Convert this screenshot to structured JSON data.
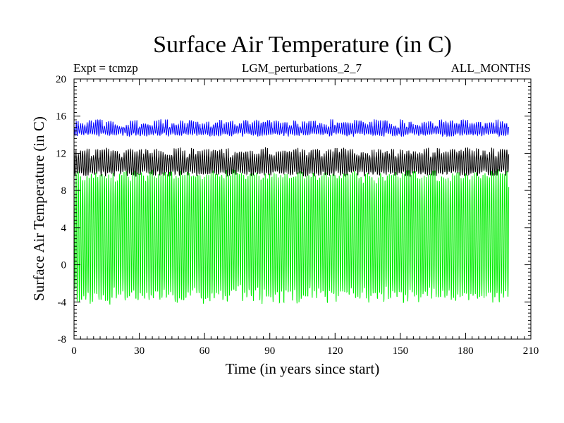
{
  "chart_data": {
    "type": "line",
    "title": "Surface Air Temperature (in C)",
    "subtitle_left": "Expt = tcmzp",
    "subtitle_center": "LGM_perturbations_2_7",
    "subtitle_right": "ALL_MONTHS",
    "xlabel": "Time (in years since start)",
    "ylabel": "Surface Air Temperature (in C)",
    "xlim": [
      0,
      210
    ],
    "ylim": [
      -8,
      20
    ],
    "xticks": [
      0,
      30,
      60,
      90,
      120,
      150,
      180,
      210
    ],
    "yticks": [
      -8,
      -4,
      0,
      4,
      8,
      12,
      16,
      20
    ],
    "x_start": 0,
    "x_end": 199.9,
    "samples_per_year": 12,
    "series": [
      {
        "name": "green",
        "color": "#00ee00",
        "annual_min_mean": -3.4,
        "annual_max_mean": 9.6,
        "overall_min": -4.7,
        "overall_max": 10.6
      },
      {
        "name": "black",
        "color": "#000000",
        "annual_min_mean": 9.8,
        "annual_max_mean": 12.1,
        "overall_min": 9.3,
        "overall_max": 13.0
      },
      {
        "name": "blue",
        "color": "#0000ff",
        "annual_min_mean": 14.0,
        "annual_max_mean": 15.2,
        "overall_min": 13.7,
        "overall_max": 16.0
      }
    ]
  }
}
